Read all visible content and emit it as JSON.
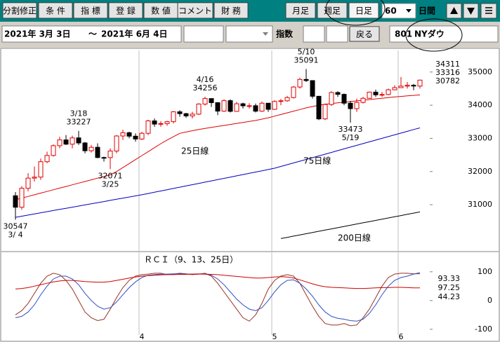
{
  "toolbar": {
    "buttons": [
      "分割修正",
      "条 件",
      "指 標",
      "登 録",
      "数 値",
      "コメント",
      "財 務"
    ],
    "periods": [
      "月足",
      "週足",
      "日足"
    ],
    "days": "60",
    "days_unit": "日間"
  },
  "range_bar": {
    "start": "2021年 3月 3日",
    "separator": "～",
    "end": "2021年 6月 4日",
    "index_label": "指数",
    "back": "戻る",
    "code": "801",
    "name": "NYダウ"
  },
  "chart_data": [
    {
      "type": "candlestick",
      "up_color": "#e00000",
      "down_color": "#000000",
      "open": [
        31270,
        30924,
        31496,
        31802,
        31832,
        32297,
        32485,
        32779,
        32953,
        32825,
        33015,
        32862,
        32627,
        32731,
        32423,
        32420,
        32619,
        33072,
        33171,
        33066,
        32981,
        33153,
        33527,
        33430,
        33446,
        33503,
        33801,
        33745,
        33677,
        33730,
        34035,
        34200,
        34077,
        33821,
        34137,
        33815,
        34043,
        33981,
        33984,
        33820,
        34060,
        33875,
        34113,
        34133,
        34230,
        34548,
        34777,
        34742,
        34269,
        33587,
        34021,
        34382,
        34327,
        34060,
        33896,
        34084,
        34208,
        34394,
        34313,
        34323,
        34465,
        34529,
        34575,
        34600,
        34577
      ],
      "high": [
        31380,
        31560,
        31950,
        32150,
        32390,
        32600,
        32820,
        33050,
        33100,
        33080,
        33227,
        32890,
        32800,
        32850,
        32450,
        32700,
        33100,
        33260,
        33200,
        33150,
        33200,
        33560,
        33600,
        33520,
        33530,
        33820,
        33850,
        33770,
        33800,
        34060,
        34256,
        34180,
        34080,
        34180,
        34180,
        34100,
        34080,
        34060,
        34050,
        34110,
        34050,
        34150,
        34190,
        34280,
        34580,
        34830,
        35091,
        34750,
        34280,
        34050,
        34420,
        34420,
        34350,
        34130,
        34200,
        34250,
        34410,
        34470,
        34400,
        34500,
        34600,
        34850,
        34700,
        34640,
        34770
      ],
      "low": [
        30547,
        30850,
        31400,
        31700,
        31750,
        32250,
        32450,
        32700,
        32800,
        32700,
        32800,
        32550,
        32570,
        32400,
        32300,
        32071,
        32550,
        32950,
        33000,
        32900,
        32950,
        33100,
        33350,
        33350,
        33380,
        33450,
        33650,
        33620,
        33600,
        33700,
        33990,
        33950,
        33700,
        33800,
        33780,
        33800,
        33900,
        33900,
        33780,
        33800,
        33800,
        33860,
        34000,
        34100,
        34200,
        34500,
        34700,
        34200,
        33550,
        33550,
        33980,
        34250,
        34000,
        33473,
        33800,
        34050,
        34200,
        34250,
        34250,
        34300,
        34450,
        34520,
        34500,
        34450,
        34500
      ],
      "close": [
        30924,
        31496,
        31802,
        31832,
        32297,
        32485,
        32779,
        32953,
        32825,
        33015,
        32862,
        32627,
        32731,
        32423,
        32420,
        32619,
        33072,
        33171,
        33066,
        32981,
        33153,
        33527,
        33430,
        33446,
        33503,
        33801,
        33745,
        33677,
        33730,
        34035,
        34200,
        34077,
        33821,
        34137,
        33815,
        34043,
        33981,
        33984,
        33820,
        34060,
        33875,
        34113,
        34133,
        34230,
        34548,
        34777,
        34742,
        34269,
        33587,
        34021,
        34382,
        34327,
        34060,
        33896,
        34084,
        34208,
        34394,
        34313,
        34323,
        34465,
        34529,
        34575,
        34600,
        34577,
        34756
      ],
      "series": [
        {
          "name": "25日線",
          "color": "#e00000",
          "values": [
            31150,
            31200,
            31250,
            31300,
            31350,
            31400,
            31450,
            31500,
            31550,
            31600,
            31650,
            31700,
            31750,
            31800,
            31850,
            31900,
            32000,
            32120,
            32240,
            32360,
            32480,
            32600,
            32720,
            32840,
            32950,
            33050,
            33150,
            33190,
            33230,
            33270,
            33300,
            33330,
            33360,
            33390,
            33420,
            33450,
            33480,
            33510,
            33540,
            33580,
            33620,
            33670,
            33720,
            33770,
            33820,
            33870,
            33920,
            33960,
            34000,
            34030,
            34050,
            34070,
            34090,
            34110,
            34130,
            34150,
            34170,
            34190,
            34210,
            34230,
            34250,
            34265,
            34280,
            34295,
            34311
          ]
        },
        {
          "name": "75日線",
          "color": "#0000c0",
          "values": [
            30620,
            30654,
            30688,
            30722,
            30756,
            30790,
            30824,
            30858,
            30892,
            30926,
            30960,
            30994,
            31028,
            31062,
            31096,
            31130,
            31164,
            31198,
            31232,
            31266,
            31300,
            31338,
            31376,
            31414,
            31452,
            31490,
            31528,
            31566,
            31604,
            31642,
            31680,
            31718,
            31756,
            31794,
            31832,
            31870,
            31908,
            31946,
            31984,
            32022,
            32060,
            32100,
            32153,
            32206,
            32259,
            32312,
            32365,
            32418,
            32471,
            32524,
            32577,
            32630,
            32683,
            32736,
            32789,
            32842,
            32895,
            32948,
            33001,
            33054,
            33107,
            33160,
            33213,
            33266,
            33316
          ]
        },
        {
          "name": "200日線",
          "color": "#000000",
          "values": [
            null,
            null,
            null,
            null,
            null,
            null,
            null,
            null,
            null,
            null,
            null,
            null,
            null,
            null,
            null,
            null,
            null,
            null,
            null,
            null,
            null,
            null,
            null,
            null,
            null,
            null,
            null,
            null,
            null,
            null,
            null,
            null,
            null,
            null,
            null,
            null,
            null,
            null,
            null,
            null,
            null,
            null,
            29980,
            30016,
            30053,
            30089,
            30126,
            30162,
            30199,
            30235,
            30272,
            30308,
            30345,
            30381,
            30418,
            30454,
            30491,
            30527,
            30564,
            30600,
            30637,
            30673,
            30710,
            30746,
            30782
          ]
        }
      ],
      "annotations": [
        {
          "text": "3/ 4",
          "value": 30547
        },
        {
          "text": "3/18",
          "value": 33227
        },
        {
          "text": "3/25",
          "value": 32071
        },
        {
          "text": "4/16",
          "value": 34256
        },
        {
          "text": "5/10",
          "value": 35091
        },
        {
          "text": "5/19",
          "value": 33473
        }
      ],
      "ylim": [
        29650,
        35650
      ],
      "yticks": [
        31000,
        32000,
        33000,
        34000,
        35000
      ]
    },
    {
      "type": "line",
      "title": "ＲＣＩ（9、13、25日）",
      "categories": [
        null,
        null,
        null,
        null,
        null,
        null,
        null,
        null,
        null,
        null,
        null,
        null,
        null,
        null,
        null,
        null,
        null,
        null,
        null,
        null,
        "4",
        null,
        null,
        null,
        null,
        null,
        null,
        null,
        null,
        null,
        null,
        null,
        null,
        null,
        null,
        null,
        null,
        null,
        null,
        null,
        null,
        "5",
        null,
        null,
        null,
        null,
        null,
        null,
        null,
        null,
        null,
        null,
        null,
        null,
        null,
        null,
        null,
        null,
        null,
        null,
        null,
        "6",
        null,
        null,
        null
      ],
      "series": [
        {
          "name": "9",
          "color": "#993322",
          "values": [
            -50,
            -35,
            -10,
            25,
            60,
            85,
            95,
            90,
            70,
            40,
            0,
            -40,
            -60,
            -70,
            -65,
            -30,
            10,
            45,
            70,
            85,
            90,
            92,
            95,
            95,
            90,
            92,
            95,
            93,
            90,
            92,
            95,
            85,
            60,
            30,
            0,
            -30,
            -60,
            -72,
            -50,
            -10,
            40,
            70,
            85,
            90,
            85,
            60,
            20,
            -20,
            -55,
            -80,
            -85,
            -85,
            -80,
            -88,
            -85,
            -60,
            -30,
            10,
            50,
            80,
            92,
            95,
            95,
            93,
            93.33
          ]
        },
        {
          "name": "13",
          "color": "#3050c0",
          "values": [
            -60,
            -55,
            -40,
            -15,
            20,
            50,
            75,
            85,
            85,
            75,
            55,
            25,
            0,
            -20,
            -30,
            -25,
            -5,
            20,
            45,
            65,
            80,
            88,
            90,
            92,
            92,
            93,
            93,
            92,
            92,
            93,
            92,
            88,
            75,
            55,
            30,
            5,
            -15,
            -30,
            -35,
            -25,
            0,
            30,
            55,
            70,
            72,
            60,
            40,
            15,
            -15,
            -40,
            -55,
            -62,
            -65,
            -70,
            -72,
            -65,
            -45,
            -15,
            20,
            50,
            70,
            80,
            85,
            92,
            97.25
          ]
        },
        {
          "name": "25",
          "color": "#d00000",
          "values": [
            40,
            42,
            45,
            50,
            55,
            60,
            65,
            68,
            70,
            70,
            68,
            66,
            65,
            64,
            64,
            66,
            70,
            74,
            78,
            82,
            85,
            87,
            88,
            89,
            90,
            90,
            91,
            91,
            92,
            92,
            92,
            91,
            90,
            88,
            86,
            84,
            82,
            80,
            78,
            78,
            80,
            82,
            83,
            82,
            78,
            72,
            65,
            58,
            52,
            48,
            46,
            45,
            44,
            43,
            42,
            42,
            43,
            44,
            45,
            45,
            46,
            46,
            45,
            44,
            44.23
          ]
        }
      ],
      "ylim": [
        -120,
        163
      ],
      "yticks": [
        -100,
        0,
        100
      ]
    }
  ]
}
